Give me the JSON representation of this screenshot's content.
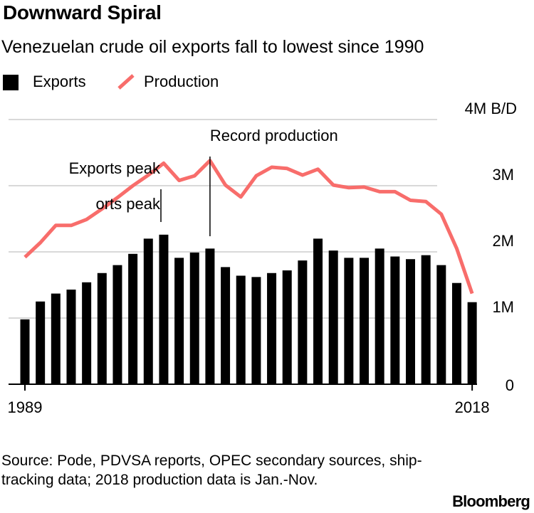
{
  "header": {
    "title": "Downward Spiral",
    "subtitle": "Venezuelan crude oil exports fall to lowest since 1990"
  },
  "legend": {
    "exports_label": "Exports",
    "production_label": "Production"
  },
  "annotations": {
    "exports_peak": "Exports peak",
    "record_production": "Record production",
    "exports_peak_ghost": "orts peak"
  },
  "footer": {
    "source": "Source: Pode, PDVSA reports, OPEC secondary sources, ship-tracking data; 2018 production data is Jan.-Nov.",
    "brand": "Bloomberg"
  },
  "colors": {
    "exports": "#000000",
    "production": "#f86d6b",
    "grid": "#d9d9d9",
    "annotation": "#000000"
  },
  "chart_data": {
    "type": "bar",
    "title": "Downward Spiral",
    "subtitle": "Venezuelan crude oil exports fall to lowest since 1990",
    "y_unit_label": "4M B/D",
    "y_tick_labels": [
      "0",
      "1M",
      "2M",
      "3M",
      "4M B/D"
    ],
    "y_ticks": [
      0,
      1,
      2,
      3,
      4
    ],
    "ylim": [
      0,
      4
    ],
    "x_tick_labels": [
      "1989",
      "2018"
    ],
    "x": [
      1989,
      1990,
      1991,
      1992,
      1993,
      1994,
      1995,
      1996,
      1997,
      1998,
      1999,
      2000,
      2001,
      2002,
      2003,
      2004,
      2005,
      2006,
      2007,
      2008,
      2009,
      2010,
      2011,
      2012,
      2013,
      2014,
      2015,
      2016,
      2017,
      2018
    ],
    "grid": true,
    "legend_position": "top-left",
    "series": [
      {
        "name": "Exports",
        "type": "bar",
        "values": [
          0.98,
          1.25,
          1.37,
          1.43,
          1.54,
          1.68,
          1.8,
          1.97,
          2.2,
          2.26,
          1.91,
          1.99,
          2.05,
          1.77,
          1.64,
          1.62,
          1.68,
          1.72,
          1.87,
          2.2,
          2.02,
          1.91,
          1.91,
          2.05,
          1.93,
          1.89,
          1.95,
          1.8,
          1.53,
          1.24
        ]
      },
      {
        "name": "Production",
        "type": "line",
        "values": [
          1.92,
          2.14,
          2.4,
          2.4,
          2.49,
          2.65,
          2.82,
          3.0,
          3.16,
          3.34,
          3.08,
          3.15,
          3.38,
          3.01,
          2.83,
          3.15,
          3.28,
          3.26,
          3.16,
          3.25,
          3.01,
          2.97,
          2.98,
          2.91,
          2.91,
          2.78,
          2.76,
          2.57,
          2.05,
          1.37
        ]
      }
    ],
    "annotations": [
      {
        "text": "Exports peak",
        "x": 1998
      },
      {
        "text": "Record production",
        "x": 2001
      }
    ]
  }
}
